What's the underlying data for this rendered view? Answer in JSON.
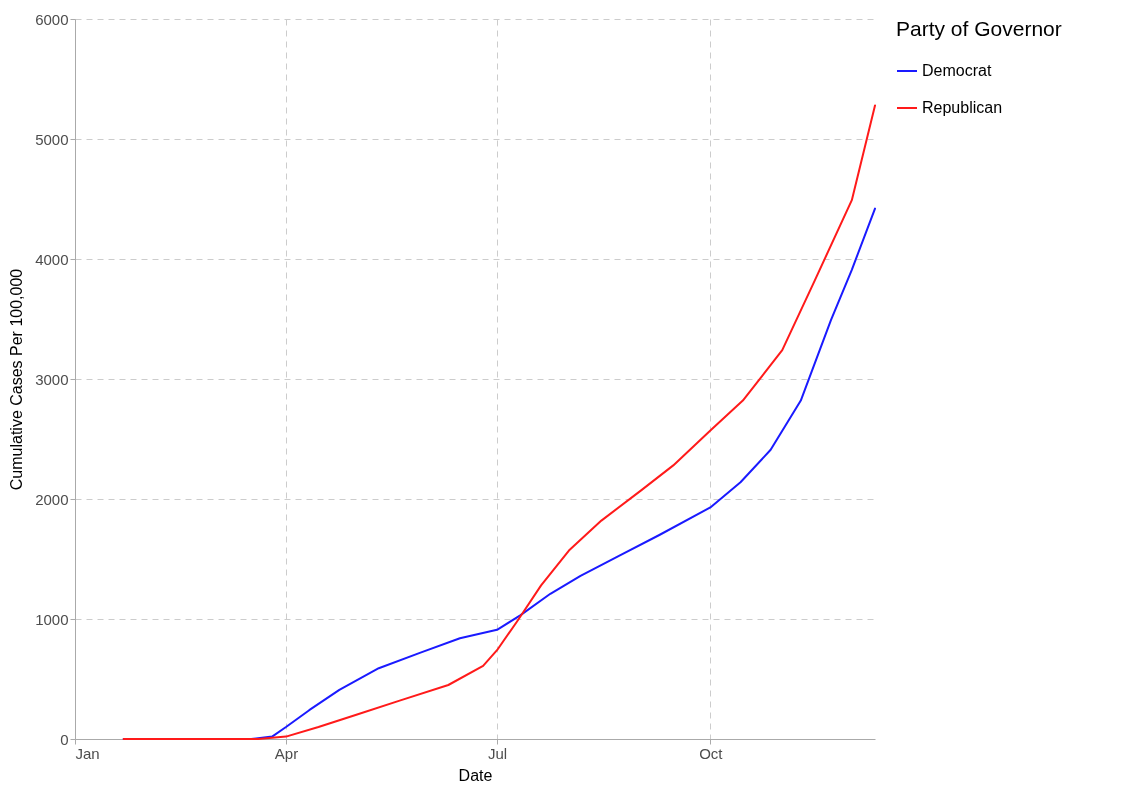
{
  "chart_data": {
    "type": "line",
    "xlabel": "Date",
    "ylabel": "Cumulative Cases Per 100,000",
    "legend_title": "Party of Governor",
    "xlim": [
      "--01-01",
      "--12-11"
    ],
    "xticks": [
      {
        "value": "--01-01",
        "label": "Jan"
      },
      {
        "value": "--04-01",
        "label": "Apr"
      },
      {
        "value": "--07-01",
        "label": "Jul"
      },
      {
        "value": "--10-01",
        "label": "Oct"
      }
    ],
    "ylim": [
      0,
      6000
    ],
    "yticks": [
      0,
      1000,
      2000,
      3000,
      4000,
      5000,
      6000
    ],
    "grid": true,
    "legend": "right",
    "line_style": "solid",
    "marker": "none",
    "series": [
      {
        "name": "Democrat",
        "color": "#1a1aff",
        "x": [
          "--01-22",
          "--03-17",
          "--03-26",
          "--04-01",
          "--04-11",
          "--04-24",
          "--05-11",
          "--05-29",
          "--06-15",
          "--07-01",
          "--07-11",
          "--07-24",
          "--08-06",
          "--08-23",
          "--09-09",
          "--10-01",
          "--10-14",
          "--10-27",
          "--11-09",
          "--11-22",
          "--12-01",
          "--12-11"
        ],
        "values": [
          0,
          0,
          20,
          100,
          240,
          410,
          590,
          720,
          840,
          910,
          1030,
          1210,
          1360,
          1530,
          1700,
          1930,
          2140,
          2410,
          2820,
          3490,
          3910,
          4420
        ]
      },
      {
        "name": "Republican",
        "color": "#ff1a1a",
        "x": [
          "--01-22",
          "--03-20",
          "--04-01",
          "--04-15",
          "--05-01",
          "--05-20",
          "--06-10",
          "--06-25",
          "--07-01",
          "--07-10",
          "--07-20",
          "--08-01",
          "--08-15",
          "--09-01",
          "--09-15",
          "--10-01",
          "--10-15",
          "--11-01",
          "--11-15",
          "--12-01",
          "--12-11"
        ],
        "values": [
          0,
          0,
          20,
          100,
          200,
          320,
          450,
          610,
          740,
          990,
          1280,
          1570,
          1820,
          2070,
          2280,
          2570,
          2820,
          3240,
          3820,
          4490,
          5280
        ]
      }
    ]
  }
}
